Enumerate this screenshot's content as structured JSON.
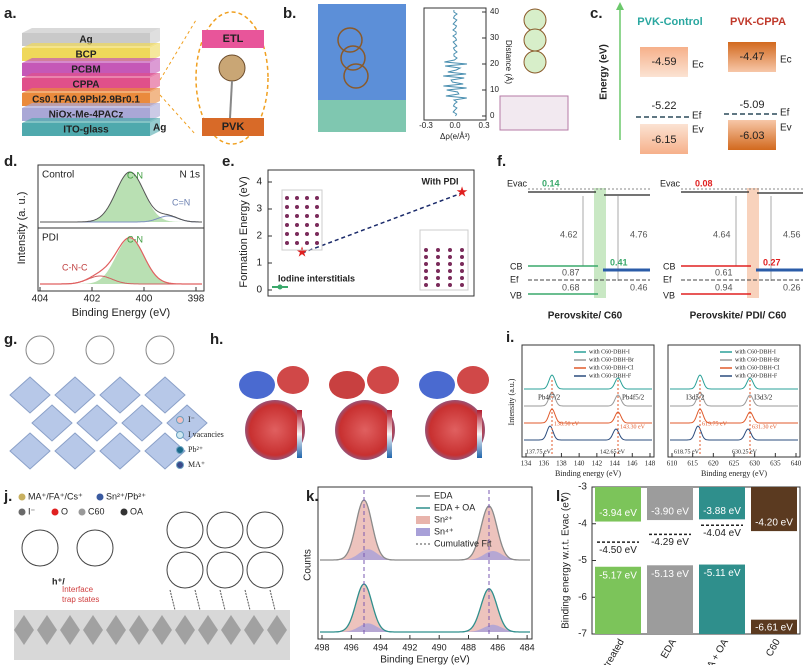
{
  "panel_a": {
    "label": "a.",
    "layers": [
      "Ag",
      "BCP",
      "PCBM",
      "CPPA",
      "Cs0.1FA0.9PbI2.9Br0.1",
      "NiOx-Me-4PACz",
      "ITO-glass"
    ],
    "side_label": "Ag",
    "etl": "ETL",
    "pvk": "PVK"
  },
  "panel_b": {
    "label": "b.",
    "y_label": "Distance (Å)",
    "x_label": "Δρ(e/Å³)",
    "yticks": [
      "0",
      "10",
      "20",
      "30",
      "40"
    ],
    "xticks": [
      "-0.3",
      "0.0",
      "0.3"
    ]
  },
  "panel_c": {
    "label": "c.",
    "y_label": "Energy (eV)",
    "columns": [
      {
        "name": "PVK-Control",
        "ec": "-4.59",
        "ef": "-5.22",
        "ev": "-6.15"
      },
      {
        "name": "PVK-CPPA",
        "ec": "-4.47",
        "ef": "-5.09",
        "ev": "-6.03"
      }
    ],
    "ec_label": "Ec",
    "ef_label": "Ef",
    "ev_label": "Ev"
  },
  "panel_d": {
    "label": "d.",
    "y_label": "Intensity (a. u.)",
    "x_label": "Binding Energy (eV)",
    "xticks": [
      "404",
      "402",
      "400",
      "398"
    ],
    "top": {
      "name": "Control",
      "region": "N 1s",
      "peaks": [
        "C-N",
        "C=N"
      ]
    },
    "bottom": {
      "name": "PDI",
      "peaks": [
        "C-N",
        "C-N-C"
      ]
    }
  },
  "panel_e": {
    "label": "e.",
    "y_label": "Formation Energy (eV)",
    "yticks": [
      "0",
      "1",
      "2",
      "3",
      "4"
    ],
    "annotations": [
      "With PDI",
      "Iodine interstitials"
    ]
  },
  "panel_f": {
    "label": "f.",
    "diagrams": [
      {
        "title": "Perovskite/ C60",
        "evac": "Evac",
        "offset": "0.14",
        "wf_left": "4.62",
        "wf_right": "4.76",
        "cb": "CB",
        "cb_offset": "0.41",
        "cb_gap": "0.87",
        "ef": "Ef",
        "vb_gap": "0.68",
        "right_gap": "0.46",
        "vb": "VB"
      },
      {
        "title": "Perovskite/ PDI/ C60",
        "evac": "Evac",
        "offset": "0.08",
        "wf_left": "4.64",
        "wf_right": "4.56",
        "cb": "CB",
        "cb_offset": "0.27",
        "cb_gap": "0.61",
        "ef": "Ef",
        "vb_gap": "0.94",
        "right_gap": "0.26",
        "vb": "VB"
      }
    ]
  },
  "panel_g": {
    "label": "g.",
    "legend": [
      "I⁻",
      "I vacancies",
      "Pb²⁺",
      "MA⁺"
    ]
  },
  "panel_h": {
    "label": "h."
  },
  "panel_i": {
    "label": "i.",
    "y_label": "Intensity (a.u.)",
    "legend": [
      "with C60-DBH-I",
      "with C60-DBH-Br",
      "with C60-DBH-Cl",
      "with C60-DBH-F"
    ],
    "plots": [
      {
        "x_label": "Binding energy (eV)",
        "xticks": [
          "134",
          "136",
          "138",
          "140",
          "142",
          "144",
          "146",
          "148"
        ],
        "peaks": [
          "Pb4f7/2",
          "Pb4f5/2"
        ],
        "shifted": [
          "138.50 eV",
          "143.30 eV"
        ],
        "reference": [
          "137.75 eV",
          "142.65 eV"
        ]
      },
      {
        "x_label": "Binding energy (eV)",
        "xticks": [
          "610",
          "615",
          "620",
          "625",
          "630",
          "635",
          "640"
        ],
        "peaks": [
          "I3d5/2",
          "I3d3/2"
        ],
        "shifted": [
          "619.75 eV",
          "631.30 eV"
        ],
        "reference": [
          "618.75 eV",
          "630.25 eV"
        ]
      }
    ]
  },
  "panel_j": {
    "label": "j.",
    "legend": [
      "MA⁺/FA⁺/Cs⁺",
      "Sn²⁺/Pb²⁺",
      "I⁻",
      "O",
      "C60",
      "OA"
    ],
    "carrier": "h⁺/",
    "trap": [
      "Interface",
      "trap states"
    ]
  },
  "panel_k": {
    "label": "k.",
    "y_label": "Counts",
    "x_label": "Binding Energy (eV)",
    "xticks": [
      "498",
      "496",
      "494",
      "492",
      "490",
      "488",
      "486",
      "484"
    ],
    "legend": [
      "EDA",
      "EDA + OA",
      "Sn²⁺",
      "Sn⁴⁺",
      "Cumulative Fit"
    ]
  },
  "panel_l": {
    "label": "l.",
    "y_label": "Binding energy w.r.t. Evac (eV)",
    "categories": [
      "Untreated",
      "EDA",
      "EDA + OA",
      "C60"
    ],
    "colors": [
      "#7cc45a",
      "#9c9c9c",
      "#2f8f8c",
      "#5b3a20"
    ],
    "ylim": [
      -3,
      -7
    ],
    "yticks": [
      -3,
      -4,
      -5,
      -6,
      -7
    ],
    "cb": {
      "values": [
        -3.94,
        -3.9,
        -3.88,
        -4.2
      ],
      "value_labels": [
        "-3.94 eV",
        "-3.90 eV",
        "-3.88 eV",
        "-4.20 eV"
      ]
    },
    "vb": {
      "values": [
        -5.17,
        -5.13,
        -5.11,
        -6.61
      ],
      "value_labels": [
        "-5.17 eV",
        "-5.13 eV",
        "-5.11 eV",
        "-6.61 eV"
      ]
    },
    "ef": {
      "values": [
        -4.5,
        -4.29,
        -4.04,
        null
      ],
      "value_labels": [
        "-4.50 eV",
        "-4.29 eV",
        "-4.04 eV",
        null
      ]
    }
  }
}
